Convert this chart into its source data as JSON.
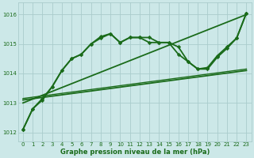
{
  "background_color": "#cce8e8",
  "grid_color": "#aacccc",
  "line_color": "#1a6b1a",
  "marker_color": "#1a6b1a",
  "xlabel": "Graphe pression niveau de la mer (hPa)",
  "xlim": [
    -0.5,
    23.5
  ],
  "ylim": [
    1011.7,
    1016.4
  ],
  "yticks": [
    1012,
    1013,
    1014,
    1015,
    1016
  ],
  "xticks": [
    0,
    1,
    2,
    3,
    4,
    5,
    6,
    7,
    8,
    9,
    10,
    11,
    12,
    13,
    14,
    15,
    16,
    17,
    18,
    19,
    20,
    21,
    22,
    23
  ],
  "series": [
    {
      "x": [
        0,
        1,
        2,
        3,
        4,
        5,
        6,
        7,
        8,
        9,
        10,
        11,
        12,
        13,
        14,
        15,
        16,
        17,
        18,
        19,
        20,
        21,
        22,
        23
      ],
      "y": [
        1012.1,
        1012.8,
        1013.1,
        1013.55,
        1014.1,
        1014.5,
        1014.65,
        1015.0,
        1015.25,
        1015.35,
        1015.05,
        1015.22,
        1015.22,
        1015.05,
        1015.05,
        1015.05,
        1014.65,
        1014.4,
        1014.15,
        1014.2,
        1014.6,
        1014.9,
        1015.2,
        1016.05
      ],
      "has_markers": true,
      "linewidth": 1.3
    },
    {
      "x": [
        0,
        1,
        2,
        3,
        4,
        5,
        6,
        7,
        8,
        9,
        10,
        11,
        12,
        13,
        14,
        15,
        16,
        17,
        18,
        19,
        20,
        21,
        22,
        23
      ],
      "y": [
        1012.1,
        1012.8,
        1013.15,
        1013.55,
        1014.1,
        1014.5,
        1014.65,
        1015.0,
        1015.2,
        1015.35,
        1015.05,
        1015.22,
        1015.22,
        1015.22,
        1015.05,
        1015.05,
        1014.9,
        1014.4,
        1014.15,
        1014.15,
        1014.55,
        1014.85,
        1015.2,
        1016.05
      ],
      "has_markers": true,
      "linewidth": 1.3
    },
    {
      "x": [
        0,
        23
      ],
      "y": [
        1013.0,
        1016.0
      ],
      "has_markers": false,
      "linewidth": 1.3
    },
    {
      "x": [
        0,
        23
      ],
      "y": [
        1013.1,
        1014.1
      ],
      "has_markers": false,
      "linewidth": 1.3
    },
    {
      "x": [
        0,
        23
      ],
      "y": [
        1013.15,
        1014.15
      ],
      "has_markers": false,
      "linewidth": 1.0
    }
  ]
}
